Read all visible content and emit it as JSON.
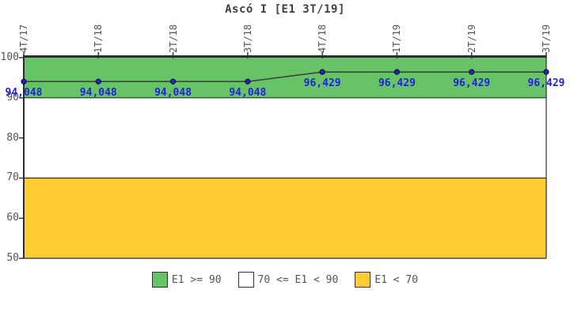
{
  "title": "Ascó I [E1 3T/19]",
  "chart_data": {
    "type": "line",
    "title": "Ascó I [E1 3T/19]",
    "categories": [
      "4T/17",
      "1T/18",
      "2T/18",
      "3T/18",
      "4T/18",
      "1T/19",
      "2T/19",
      "3T/19"
    ],
    "series": [
      {
        "name": "E1",
        "values": [
          94.048,
          94.048,
          94.048,
          94.048,
          96.429,
          96.429,
          96.429,
          96.429
        ]
      }
    ],
    "point_labels": [
      "94,048",
      "94,048",
      "94,048",
      "94,048",
      "96,429",
      "96,429",
      "96,429",
      "96,429"
    ],
    "xlabel": "",
    "ylabel": "",
    "ylim": [
      50,
      100
    ],
    "y_ticks": [
      100,
      90,
      80,
      70,
      60,
      50
    ],
    "grid": false,
    "legend_position": "bottom",
    "bands": [
      {
        "label": "E1 >= 90",
        "from": 90,
        "to": 100,
        "color": "#66c466"
      },
      {
        "label": "70 <= E1 < 90",
        "from": 70,
        "to": 90,
        "color": "#ffffff"
      },
      {
        "label": "E1 < 70",
        "from": 50,
        "to": 70,
        "color": "#ffcc33"
      }
    ]
  },
  "legend": {
    "items": [
      {
        "label": "E1 >= 90",
        "color": "#66c466"
      },
      {
        "label": "70 <= E1 < 90",
        "color": "#ffffff"
      },
      {
        "label": "E1 < 70",
        "color": "#ffcc33"
      }
    ]
  },
  "colors": {
    "line": "#404040",
    "point_fill": "#2222cc",
    "point_stroke": "#000000",
    "point_label_text": "#2222dd",
    "axis": "#2e2e2e",
    "tick_text": "#555555",
    "title_text": "#404040"
  }
}
